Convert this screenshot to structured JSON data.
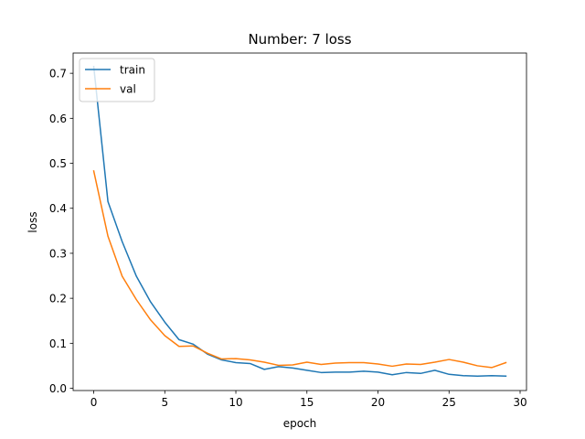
{
  "chart_data": {
    "type": "line",
    "title": "Number: 7 loss",
    "xlabel": "epoch",
    "ylabel": "loss",
    "xlim": [
      -1.45,
      30.45
    ],
    "ylim": [
      -0.005,
      0.745
    ],
    "xticks": [
      0,
      5,
      10,
      15,
      20,
      25,
      30
    ],
    "yticks": [
      0.0,
      0.1,
      0.2,
      0.3,
      0.4,
      0.5,
      0.6,
      0.7
    ],
    "ytick_labels": [
      "0.0",
      "0.1",
      "0.2",
      "0.3",
      "0.4",
      "0.5",
      "0.6",
      "0.7"
    ],
    "grid": false,
    "legend": "upper-left",
    "x": [
      0,
      1,
      2,
      3,
      4,
      5,
      6,
      7,
      8,
      9,
      10,
      11,
      12,
      13,
      14,
      15,
      16,
      17,
      18,
      19,
      20,
      21,
      22,
      23,
      24,
      25,
      26,
      27,
      28,
      29
    ],
    "series": [
      {
        "name": "train",
        "color": "#1f77b4",
        "values": [
          0.715,
          0.415,
          0.326,
          0.249,
          0.192,
          0.147,
          0.108,
          0.098,
          0.076,
          0.063,
          0.057,
          0.055,
          0.042,
          0.048,
          0.045,
          0.04,
          0.035,
          0.036,
          0.036,
          0.038,
          0.036,
          0.03,
          0.035,
          0.033,
          0.04,
          0.031,
          0.028,
          0.027,
          0.028,
          0.027
        ]
      },
      {
        "name": "val",
        "color": "#ff7f0e",
        "values": [
          0.483,
          0.338,
          0.249,
          0.197,
          0.152,
          0.117,
          0.093,
          0.094,
          0.078,
          0.065,
          0.066,
          0.063,
          0.058,
          0.051,
          0.052,
          0.058,
          0.053,
          0.056,
          0.057,
          0.057,
          0.054,
          0.049,
          0.054,
          0.053,
          0.058,
          0.064,
          0.058,
          0.05,
          0.046,
          0.057
        ]
      }
    ]
  }
}
